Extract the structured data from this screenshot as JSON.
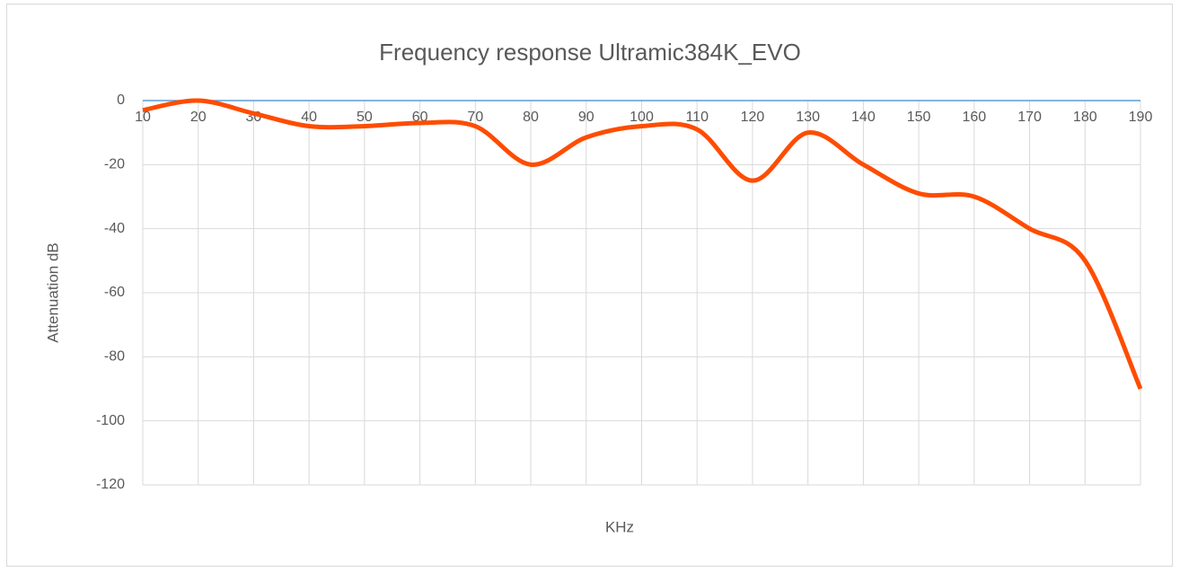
{
  "chart_data": {
    "type": "line",
    "title": "Frequency response Ultramic384K_EVO",
    "x_label": "KHz",
    "y_label": "Attenuation dB",
    "x": [
      10,
      20,
      30,
      40,
      50,
      60,
      70,
      80,
      90,
      100,
      110,
      120,
      130,
      140,
      150,
      160,
      170,
      180,
      190
    ],
    "values": [
      -3,
      0,
      -4,
      -8,
      -8,
      -7,
      -8,
      -20,
      -11.5,
      -8,
      -9,
      -25,
      -10,
      -20,
      -29,
      -30,
      -40,
      -50,
      -90
    ],
    "color": "#ff4c00",
    "smooth": true,
    "xlim": [
      10,
      190
    ],
    "xticks": [
      10,
      20,
      30,
      40,
      50,
      60,
      70,
      80,
      90,
      100,
      110,
      120,
      130,
      140,
      150,
      160,
      170,
      180,
      190
    ],
    "ylim": [
      -120,
      0
    ],
    "yticks": [
      0,
      -20,
      -40,
      -60,
      -80,
      -100,
      -120
    ],
    "grid": true
  }
}
